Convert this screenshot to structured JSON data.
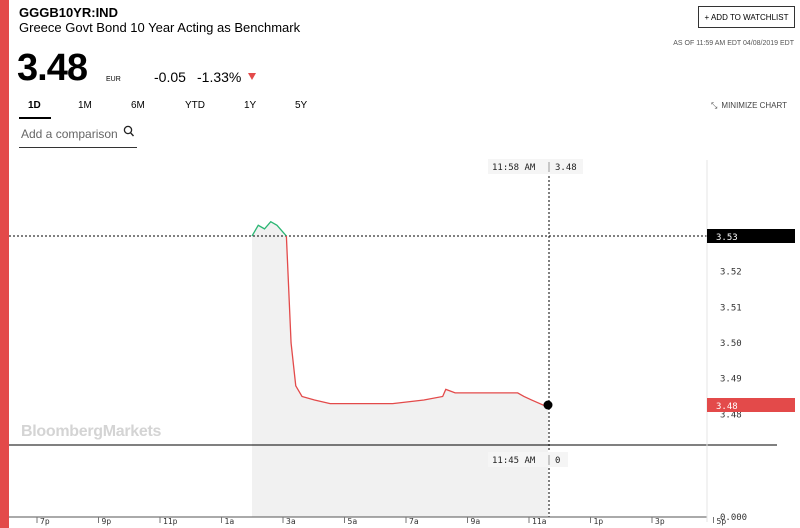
{
  "header": {
    "ticker": "GGGB10YR:IND",
    "name": "Greece Govt Bond 10 Year Acting as Benchmark",
    "price": "3.48",
    "currency": "EUR",
    "change": "-0.05",
    "change_pct": "-1.33%",
    "watchlist_label": "+ ADD TO WATCHLIST",
    "as_of": "AS OF 11:59 AM EDT 04/08/2019 EDT"
  },
  "ranges": [
    "1D",
    "1M",
    "6M",
    "YTD",
    "1Y",
    "5Y"
  ],
  "active_range": "1D",
  "minimize_label": "MINIMIZE CHART",
  "compare_placeholder": "Add a comparison",
  "watermark": "BloombergMarkets",
  "colors": {
    "accent": "#e34a4a",
    "up": "#2bb673",
    "down": "#e34a4a"
  },
  "chart_data": {
    "type": "line",
    "y_ticks": [
      "3.52",
      "3.51",
      "3.50",
      "3.49",
      "3.48"
    ],
    "x_ticks": [
      "7p",
      "9p",
      "11p",
      "1a",
      "3a",
      "5a",
      "7a",
      "9a",
      "11a",
      "1p",
      "3p",
      "5p"
    ],
    "previous_close": "3.53",
    "last_label": "3.48",
    "volume_label": "0.000",
    "crosshair_time": "11:58 AM",
    "crosshair_value": "3.48",
    "volume_time": "11:45 AM",
    "volume_value": "0",
    "ylim": [
      3.475,
      3.536
    ],
    "series": [
      {
        "color": "#2bb673",
        "points": [
          [
            2.5,
            3.53
          ],
          [
            2.7,
            3.533
          ],
          [
            2.9,
            3.532
          ],
          [
            3.1,
            3.534
          ],
          [
            3.3,
            3.533
          ],
          [
            3.5,
            3.531
          ],
          [
            3.6,
            3.53
          ]
        ]
      },
      {
        "color": "#e34a4a",
        "points": [
          [
            3.6,
            3.53
          ],
          [
            3.75,
            3.5
          ],
          [
            3.9,
            3.488
          ],
          [
            4.1,
            3.485
          ],
          [
            4.5,
            3.484
          ],
          [
            5.0,
            3.483
          ],
          [
            6.0,
            3.483
          ],
          [
            7.0,
            3.483
          ],
          [
            8.0,
            3.484
          ],
          [
            8.6,
            3.485
          ],
          [
            8.7,
            3.487
          ],
          [
            9.0,
            3.486
          ],
          [
            9.5,
            3.486
          ],
          [
            10.0,
            3.486
          ],
          [
            10.5,
            3.486
          ],
          [
            11.0,
            3.486
          ],
          [
            11.2,
            3.485
          ],
          [
            11.45,
            3.484
          ],
          [
            11.97,
            3.482
          ]
        ]
      }
    ]
  }
}
